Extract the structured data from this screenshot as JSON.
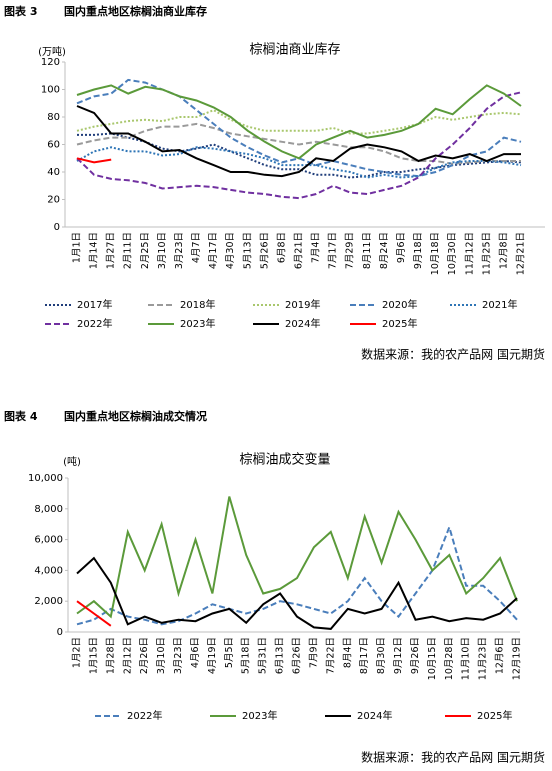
{
  "chart_data": [
    {
      "type": "line",
      "figure_label": "图表 3",
      "caption": "国内重点地区棕榈油商业库存",
      "title": "棕榈油商业库存",
      "y_label": "(万吨)",
      "source": "数据来源：我的农产品网 国元期货",
      "categories": [
        "1月1日",
        "1月14日",
        "1月27日",
        "2月11日",
        "2月25日",
        "3月10日",
        "3月23日",
        "4月7日",
        "4月17日",
        "4月30日",
        "5月13日",
        "5月26日",
        "6月8日",
        "6月21日",
        "7月4日",
        "7月17日",
        "7月29日",
        "8月11日",
        "8月24日",
        "9月6日",
        "9月18日",
        "10月18日",
        "10月30日",
        "11月12日",
        "11月25日",
        "12月8日",
        "12月21日"
      ],
      "ylim": [
        0,
        120
      ],
      "yticks": [
        0,
        20,
        40,
        60,
        80,
        100,
        120
      ],
      "series": [
        {
          "name": "2017年",
          "color": "#1f3d7a",
          "dash": "dotted",
          "values": [
            67,
            67,
            68,
            65,
            62,
            57,
            55,
            57,
            60,
            55,
            50,
            45,
            42,
            42,
            38,
            38,
            36,
            37,
            40,
            40,
            42,
            43,
            45,
            46,
            47,
            48,
            47
          ]
        },
        {
          "name": "2018年",
          "color": "#9a9a9a",
          "dash": "dashed",
          "values": [
            60,
            63,
            65,
            65,
            70,
            73,
            73,
            75,
            72,
            68,
            66,
            64,
            62,
            60,
            62,
            60,
            58,
            58,
            55,
            50,
            48,
            48,
            46,
            47,
            48,
            48,
            48
          ]
        },
        {
          "name": "2019年",
          "color": "#a9c76d",
          "dash": "dotted",
          "values": [
            70,
            73,
            75,
            77,
            78,
            77,
            80,
            80,
            85,
            78,
            73,
            70,
            70,
            70,
            70,
            72,
            68,
            68,
            70,
            72,
            75,
            80,
            78,
            80,
            82,
            83,
            82
          ]
        },
        {
          "name": "2020年",
          "color": "#4a7ebb",
          "dash": "dashed",
          "values": [
            90,
            95,
            97,
            107,
            105,
            100,
            95,
            85,
            75,
            65,
            58,
            52,
            47,
            50,
            45,
            48,
            45,
            42,
            40,
            38,
            37,
            40,
            45,
            52,
            55,
            65,
            62
          ]
        },
        {
          "name": "2021年",
          "color": "#2e75b6",
          "dash": "dotted",
          "values": [
            48,
            55,
            58,
            55,
            55,
            52,
            53,
            58,
            57,
            55,
            53,
            50,
            45,
            45,
            45,
            42,
            40,
            36,
            38,
            36,
            37,
            43,
            47,
            48,
            48,
            47,
            45
          ]
        },
        {
          "name": "2022年",
          "color": "#7030a0",
          "dash": "dashed",
          "values": [
            50,
            38,
            35,
            34,
            32,
            28,
            29,
            30,
            29,
            27,
            25,
            24,
            22,
            21,
            24,
            30,
            25,
            24,
            27,
            30,
            36,
            50,
            60,
            72,
            86,
            95,
            98
          ]
        },
        {
          "name": "2023年",
          "color": "#5b9a3a",
          "dash": "solid",
          "values": [
            96,
            100,
            103,
            97,
            102,
            100,
            95,
            92,
            87,
            80,
            70,
            62,
            55,
            50,
            60,
            65,
            70,
            65,
            67,
            70,
            75,
            86,
            82,
            93,
            103,
            97,
            88
          ]
        },
        {
          "name": "2024年",
          "color": "#000000",
          "dash": "solid",
          "values": [
            88,
            83,
            68,
            68,
            62,
            55,
            56,
            50,
            45,
            40,
            40,
            38,
            37,
            40,
            50,
            48,
            57,
            60,
            58,
            55,
            48,
            52,
            50,
            53,
            48,
            53,
            53
          ]
        },
        {
          "name": "2025年",
          "color": "#ff0000",
          "dash": "solid",
          "values": [
            50,
            47,
            49,
            null,
            null,
            null,
            null,
            null,
            null,
            null,
            null,
            null,
            null,
            null,
            null,
            null,
            null,
            null,
            null,
            null,
            null,
            null,
            null,
            null,
            null,
            null,
            null
          ]
        }
      ]
    },
    {
      "type": "line",
      "figure_label": "图表 4",
      "caption": "国内重点地区棕榈油成交情况",
      "title": "棕榈油成交变量",
      "y_label": "(吨)",
      "source": "数据来源：我的农产品网 国元期货",
      "categories": [
        "1月2日",
        "1月15日",
        "1月28日",
        "2月12日",
        "2月26日",
        "3月10日",
        "3月23日",
        "4月6日",
        "4月19日",
        "5月5日",
        "5月18日",
        "5月31日",
        "6月13日",
        "6月26日",
        "7月9日",
        "7月22日",
        "8月4日",
        "8月17日",
        "8月30日",
        "9月12日",
        "9月26日",
        "10月15日",
        "10月28日",
        "11月10日",
        "11月23日",
        "12月6日",
        "12月19日"
      ],
      "ylim": [
        0,
        10000
      ],
      "yticks": [
        0,
        {
          "value": 2000,
          "label": "2,000"
        },
        {
          "value": 4000,
          "label": "4,000"
        },
        {
          "value": 6000,
          "label": "6,000"
        },
        {
          "value": 8000,
          "label": "8,000"
        },
        {
          "value": 10000,
          "label": "10,000"
        }
      ],
      "series": [
        {
          "name": "2022年",
          "color": "#4a7ebb",
          "dash": "dashed",
          "values": [
            500,
            800,
            1500,
            1000,
            800,
            500,
            700,
            1200,
            1800,
            1500,
            1200,
            1500,
            2000,
            1800,
            1500,
            1200,
            2000,
            3500,
            2000,
            1000,
            2500,
            4000,
            6800,
            3000,
            3000,
            2000,
            800
          ]
        },
        {
          "name": "2023年",
          "color": "#5b9a3a",
          "dash": "solid",
          "values": [
            1200,
            2000,
            1000,
            6500,
            4000,
            7000,
            2500,
            6000,
            2500,
            8800,
            5000,
            2500,
            2800,
            3500,
            5500,
            6500,
            3500,
            7500,
            4500,
            7800,
            6000,
            4000,
            5000,
            2500,
            3500,
            4800,
            2000
          ]
        },
        {
          "name": "2024年",
          "color": "#000000",
          "dash": "solid",
          "values": [
            3800,
            4800,
            3200,
            500,
            1000,
            600,
            800,
            700,
            1200,
            1500,
            600,
            1800,
            2500,
            1000,
            300,
            200,
            1500,
            1200,
            1500,
            3200,
            800,
            1000,
            700,
            900,
            800,
            1200,
            2200
          ]
        },
        {
          "name": "2025年",
          "color": "#ff0000",
          "dash": "solid",
          "values": [
            2000,
            1200,
            400,
            null,
            null,
            null,
            null,
            null,
            null,
            null,
            null,
            null,
            null,
            null,
            null,
            null,
            null,
            null,
            null,
            null,
            null,
            null,
            null,
            null,
            null,
            null,
            null
          ]
        }
      ]
    }
  ]
}
